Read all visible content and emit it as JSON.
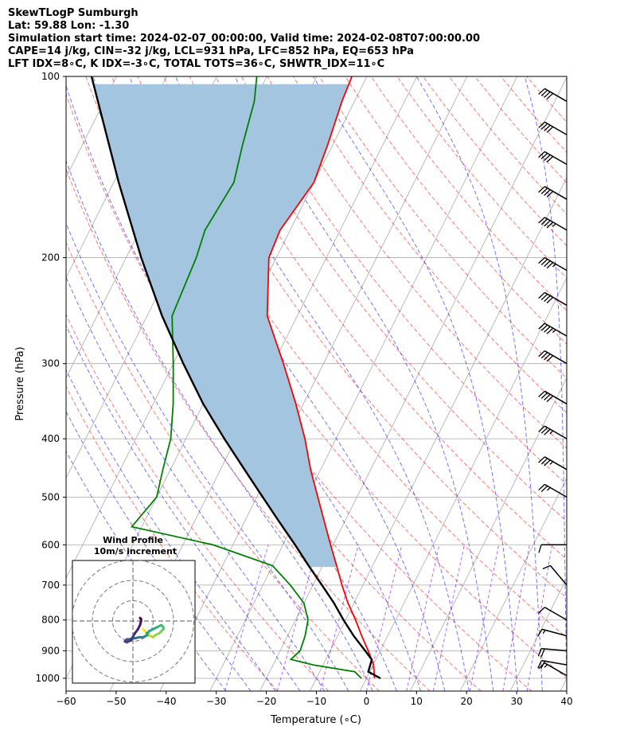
{
  "header": {
    "line1": "SkewTLogP Sumburgh",
    "line2": "Lat: 59.88   Lon: -1.30",
    "line3": "Simulation start time: 2024-02-07_00:00:00, Valid time: 2024-02-08T07:00:00.00",
    "line4": "CAPE=14 j/kg, CIN=-32 j/kg, LCL=931 hPa, LFC=852 hPa, EQ=653 hPa",
    "line5": "LFT IDX=8∘C, K IDX=-3∘C, TOTAL TOTS=36∘C, SHWTR_IDX=11∘C"
  },
  "chart_data": [
    {
      "type": "line",
      "subtype": "skew-T log-P",
      "xlabel": "Temperature (∘C)",
      "ylabel": "Pressure (hPa)",
      "xlim": [
        -60,
        40
      ],
      "ylim": [
        1050,
        100
      ],
      "y_scale": "log",
      "x_ticks": [
        -60,
        -50,
        -40,
        -30,
        -20,
        -10,
        0,
        10,
        20,
        30,
        40
      ],
      "y_ticks": [
        100,
        200,
        300,
        400,
        500,
        600,
        700,
        800,
        900,
        1000
      ],
      "grid": true,
      "series": [
        {
          "color": "#ff0000",
          "points": [
            [
              1000,
              1.6
            ],
            [
              950,
              0.1
            ],
            [
              900,
              -2.4
            ],
            [
              850,
              -5.2
            ],
            [
              800,
              -8.0
            ],
            [
              750,
              -11.2
            ],
            [
              700,
              -14.2
            ],
            [
              650,
              -17.2
            ],
            [
              600,
              -20.5
            ],
            [
              550,
              -24.0
            ],
            [
              500,
              -27.8
            ],
            [
              450,
              -32.0
            ],
            [
              400,
              -36.2
            ],
            [
              350,
              -41.5
            ],
            [
              300,
              -48.0
            ],
            [
              250,
              -56.0
            ],
            [
              200,
              -61.5
            ],
            [
              180,
              -62.0
            ],
            [
              150,
              -60.0
            ],
            [
              130,
              -61.0
            ],
            [
              110,
              -62.5
            ],
            [
              100,
              -63.0
            ]
          ]
        },
        {
          "color": "#008000",
          "points": [
            [
              1000,
              -1.0
            ],
            [
              975,
              -3.0
            ],
            [
              950,
              -12.0
            ],
            [
              930,
              -17.0
            ],
            [
              900,
              -16.0
            ],
            [
              850,
              -16.5
            ],
            [
              800,
              -17.5
            ],
            [
              750,
              -20.0
            ],
            [
              700,
              -24.5
            ],
            [
              650,
              -30.0
            ],
            [
              600,
              -44.0
            ],
            [
              560,
              -62.0
            ],
            [
              500,
              -60.0
            ],
            [
              450,
              -61.5
            ],
            [
              400,
              -63.0
            ],
            [
              350,
              -66.0
            ],
            [
              300,
              -70.0
            ],
            [
              250,
              -75.0
            ],
            [
              200,
              -76.0
            ],
            [
              180,
              -77.0
            ],
            [
              150,
              -76.0
            ],
            [
              130,
              -78.0
            ],
            [
              110,
              -80.0
            ],
            [
              100,
              -82.0
            ]
          ]
        },
        {
          "color": "#000000",
          "points": [
            [
              1000,
              2.8
            ],
            [
              975,
              -0.3
            ],
            [
              931,
              -0.8
            ],
            [
              900,
              -3.0
            ],
            [
              850,
              -6.8
            ],
            [
              800,
              -10.4
            ],
            [
              750,
              -14.0
            ],
            [
              700,
              -18.2
            ],
            [
              650,
              -22.8
            ],
            [
              600,
              -27.6
            ],
            [
              550,
              -33.0
            ],
            [
              500,
              -38.8
            ],
            [
              450,
              -45.2
            ],
            [
              400,
              -52.3
            ],
            [
              350,
              -60.0
            ],
            [
              300,
              -68.0
            ],
            [
              250,
              -77.0
            ],
            [
              200,
              -87.0
            ],
            [
              150,
              -99.0
            ],
            [
              100,
              -115.0
            ]
          ]
        }
      ],
      "cape_shading_color": "#a3c5df",
      "dry_adiabat_color": "#ff0000",
      "moist_adiabat_color": "#0000ff",
      "mixing_ratio_color": "#8000ff",
      "wind_barbs": [
        {
          "p": 990,
          "speed_kt": 15,
          "dir": 300
        },
        {
          "p": 950,
          "speed_kt": 20,
          "dir": 280
        },
        {
          "p": 900,
          "speed_kt": 20,
          "dir": 275
        },
        {
          "p": 850,
          "speed_kt": 15,
          "dir": 285
        },
        {
          "p": 800,
          "speed_kt": 10,
          "dir": 300
        },
        {
          "p": 700,
          "speed_kt": 10,
          "dir": 320
        },
        {
          "p": 600,
          "speed_kt": 10,
          "dir": 270
        },
        {
          "p": 500,
          "speed_kt": 25,
          "dir": 300
        },
        {
          "p": 450,
          "speed_kt": 35,
          "dir": 300
        },
        {
          "p": 400,
          "speed_kt": 35,
          "dir": 300
        },
        {
          "p": 350,
          "speed_kt": 40,
          "dir": 300
        },
        {
          "p": 300,
          "speed_kt": 40,
          "dir": 300
        },
        {
          "p": 270,
          "speed_kt": 45,
          "dir": 300
        },
        {
          "p": 240,
          "speed_kt": 40,
          "dir": 300
        },
        {
          "p": 210,
          "speed_kt": 45,
          "dir": 300
        },
        {
          "p": 180,
          "speed_kt": 45,
          "dir": 300
        },
        {
          "p": 160,
          "speed_kt": 40,
          "dir": 300
        },
        {
          "p": 140,
          "speed_kt": 40,
          "dir": 300
        },
        {
          "p": 125,
          "speed_kt": 40,
          "dir": 300
        },
        {
          "p": 110,
          "speed_kt": 40,
          "dir": 300
        }
      ]
    },
    {
      "type": "line",
      "subtype": "hodograph",
      "title": "Wind Profile\n10m/s increment",
      "rings": [
        10,
        20,
        30
      ],
      "colormap": "viridis",
      "points": [
        [
          5,
          -4
        ],
        [
          6,
          -5
        ],
        [
          6.5,
          -6
        ],
        [
          8,
          -7
        ],
        [
          10,
          -8
        ],
        [
          11,
          -7
        ],
        [
          13,
          -6
        ],
        [
          14,
          -5
        ],
        [
          15,
          -4
        ],
        [
          15,
          -3
        ],
        [
          14,
          -2
        ],
        [
          12,
          -3
        ],
        [
          10,
          -4
        ],
        [
          8,
          -5
        ],
        [
          7,
          -6
        ],
        [
          7,
          -7
        ],
        [
          6,
          -7.5
        ],
        [
          5,
          -8
        ],
        [
          4,
          -8
        ],
        [
          3,
          -8
        ],
        [
          1,
          -8.5
        ],
        [
          0,
          -8.5
        ],
        [
          -2,
          -9
        ],
        [
          -3,
          -9
        ],
        [
          -4,
          -10
        ],
        [
          -3,
          -10.5
        ],
        [
          -1,
          -9.5
        ],
        [
          1,
          -6
        ],
        [
          2.5,
          -4
        ],
        [
          3.5,
          -2
        ],
        [
          4,
          0
        ],
        [
          4,
          1
        ],
        [
          3.5,
          1.5
        ]
      ]
    }
  ]
}
